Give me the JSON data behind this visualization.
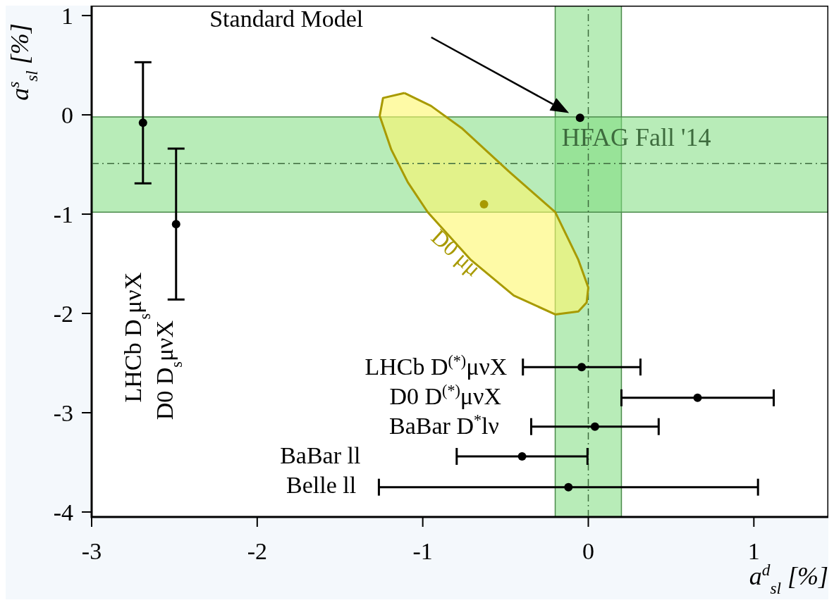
{
  "chart_data": {
    "type": "scatter",
    "xlabel": "a$^{d}$$_{sl}$ [%]",
    "ylabel": "a$^{s}$$_{sl}$ [%]",
    "xlim": [
      -3,
      1.45
    ],
    "ylim": [
      -4.05,
      1.1
    ],
    "xticks": [
      -3,
      -2,
      -1,
      0,
      1
    ],
    "yticks": [
      -4,
      -3,
      -2,
      -1,
      0,
      1
    ],
    "marker": "circle",
    "series": [
      {
        "color": "#000000",
        "x": [
          -2.69,
          -2.49
        ],
        "values": [
          -0.08,
          -1.1
        ],
        "errors": [
          0.61,
          0.76
        ]
      },
      {
        "color": "#000000",
        "x": [
          -0.04,
          0.66,
          0.04,
          -0.4,
          -0.12
        ],
        "values": [
          -2.54,
          -2.85,
          -3.14,
          -3.44,
          -3.75
        ],
        "xerrors": [
          0.355,
          0.46,
          0.385,
          0.395,
          1.145
        ]
      },
      {
        "color": "#000000",
        "x": [
          -0.05
        ],
        "values": [
          -0.03
        ]
      },
      {
        "color": "#a89a00",
        "x": [
          -0.63
        ],
        "values": [
          -0.9
        ]
      },
      {
        "type": "area",
        "name": "D0 μμ",
        "color": "#a89a00",
        "marker": "none",
        "x": [
          -1.11,
          -1.24,
          -1.26,
          -1.19,
          -1.09,
          -0.97,
          -0.71,
          -0.45,
          -0.2,
          -0.06,
          -0.01,
          0.0,
          -0.06,
          -0.2,
          -0.48,
          -0.76,
          -0.95
        ],
        "values": [
          0.22,
          0.17,
          -0.01,
          -0.35,
          -0.68,
          -0.98,
          -1.46,
          -1.82,
          -2.01,
          -1.98,
          -1.89,
          -1.74,
          -1.46,
          -0.98,
          -0.57,
          -0.14,
          0.09
        ]
      }
    ],
    "bands": [
      {
        "axis": "x",
        "from": -0.2,
        "to": 0.2,
        "color": "#7ddc7d"
      },
      {
        "axis": "y",
        "from": -0.98,
        "to": -0.02,
        "color": "#7ddc7d"
      }
    ],
    "ref_lines": [
      {
        "axis": "x",
        "value": 0.0,
        "line_style": "dashed"
      },
      {
        "axis": "y",
        "value": -0.49,
        "line_style": "dashed"
      }
    ],
    "annotations": [
      "Standard Model",
      "HFAG Fall '14",
      "LHCb D$_{s}$μνX",
      "D0 D$_{s}$μνX",
      "LHCb D$^{(*)}$μνX",
      "D0 D$^{(*)}$μνX",
      "BaBar D$^{*}$lν",
      "BaBar ll",
      "Belle ll"
    ]
  }
}
